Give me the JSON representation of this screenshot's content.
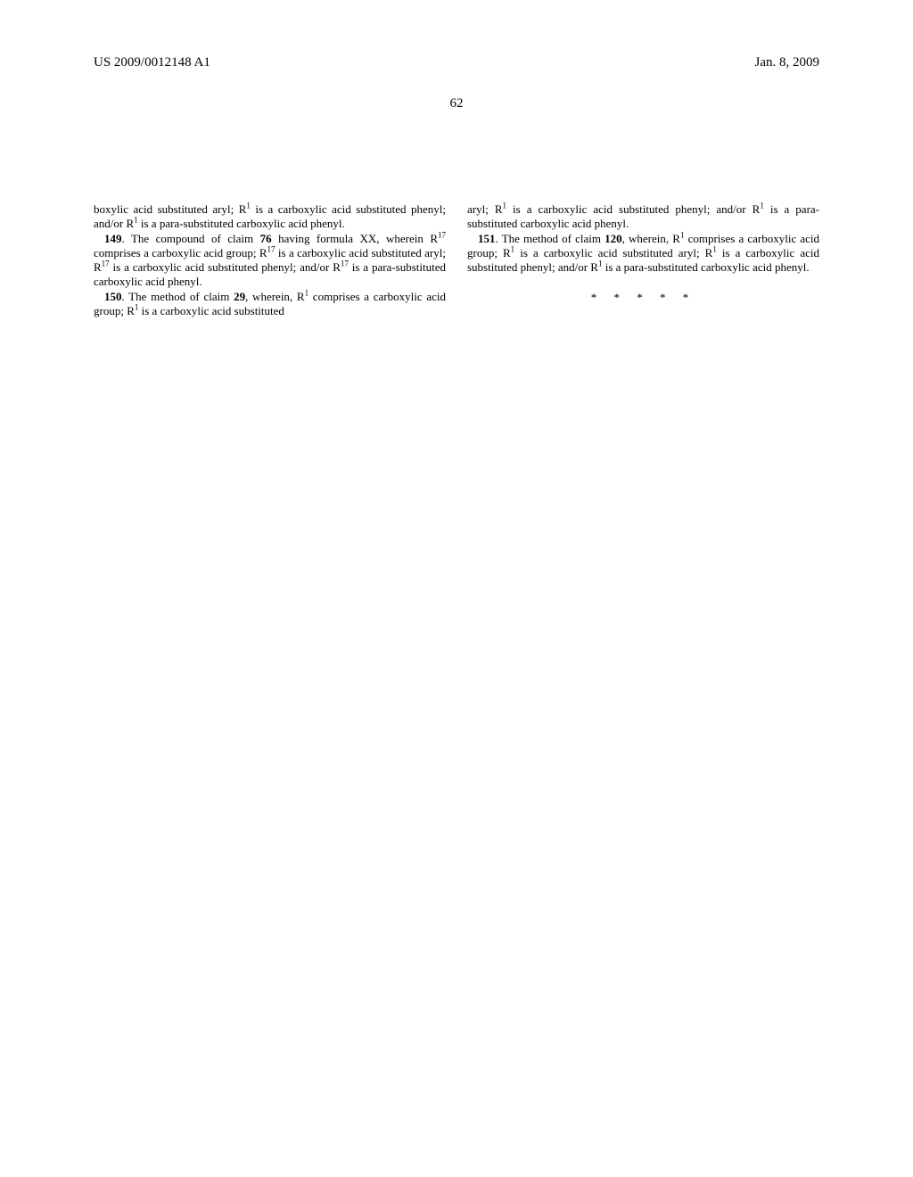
{
  "header": {
    "publication_number": "US 2009/0012148 A1",
    "date": "Jan. 8, 2009"
  },
  "page_number": "62",
  "left_column": {
    "continuation": "boxylic acid substituted aryl; R",
    "continuation_sup1": "1",
    "continuation_mid": " is a carboxylic acid substituted phenyl; and/or R",
    "continuation_sup2": "1",
    "continuation_end": " is a para-substituted carboxylic acid phenyl.",
    "claim149_num": "149",
    "claim149_a": ". The compound of claim ",
    "claim149_ref": "76",
    "claim149_b": " having formula XX, wherein R",
    "claim149_sup1": "17",
    "claim149_c": " comprises a carboxylic acid group; R",
    "claim149_sup2": "17",
    "claim149_d": " is a carboxylic acid substituted aryl; R",
    "claim149_sup3": "17",
    "claim149_e": " is a carboxylic acid substituted phenyl; and/or R",
    "claim149_sup4": "17",
    "claim149_f": " is a para-substituted carboxylic acid phenyl.",
    "claim150_num": "150",
    "claim150_a": ". The method of claim ",
    "claim150_ref": "29",
    "claim150_b": ", wherein, R",
    "claim150_sup1": "1",
    "claim150_c": " comprises a carboxylic acid group; R",
    "claim150_sup2": "1",
    "claim150_d": " is a carboxylic acid substituted"
  },
  "right_column": {
    "continuation_a": "aryl; R",
    "continuation_sup1": "1",
    "continuation_b": " is a carboxylic acid substituted phenyl; and/or R",
    "continuation_sup2": "1",
    "continuation_c": " is a para-substituted carboxylic acid phenyl.",
    "claim151_num": "151",
    "claim151_a": ". The method of claim ",
    "claim151_ref": "120",
    "claim151_b": ", wherein, R",
    "claim151_sup1": "1",
    "claim151_c": " comprises a carboxylic acid group; R",
    "claim151_sup2": "1",
    "claim151_d": " is a carboxylic acid substituted aryl; R",
    "claim151_sup3": "1",
    "claim151_e": " is a carboxylic acid substituted phenyl; and/or R",
    "claim151_sup4": "1",
    "claim151_f": " is a para-substituted carboxylic acid phenyl."
  },
  "closing": "* * * * *"
}
